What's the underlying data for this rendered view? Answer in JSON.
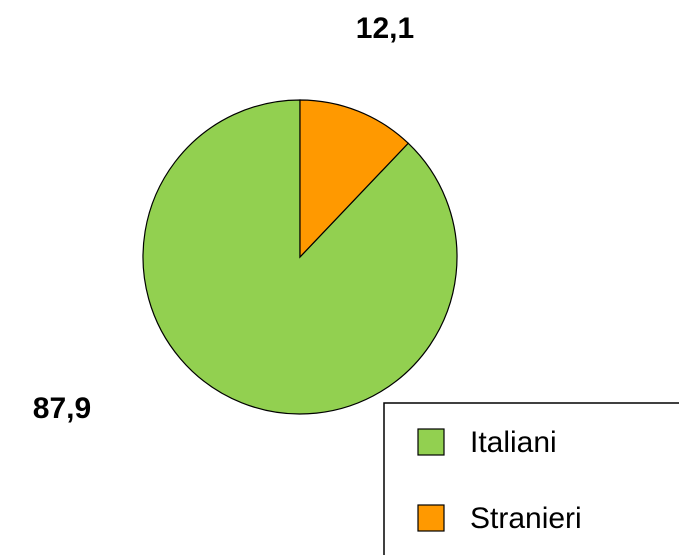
{
  "chart_data": {
    "type": "pie",
    "categories": [
      "Italiani",
      "Stranieri"
    ],
    "values": [
      87.9,
      12.1
    ],
    "value_labels": [
      "87,9",
      "12,1"
    ],
    "colors": [
      "#92d050",
      "#ff9900"
    ],
    "legend": "bottom-right"
  }
}
